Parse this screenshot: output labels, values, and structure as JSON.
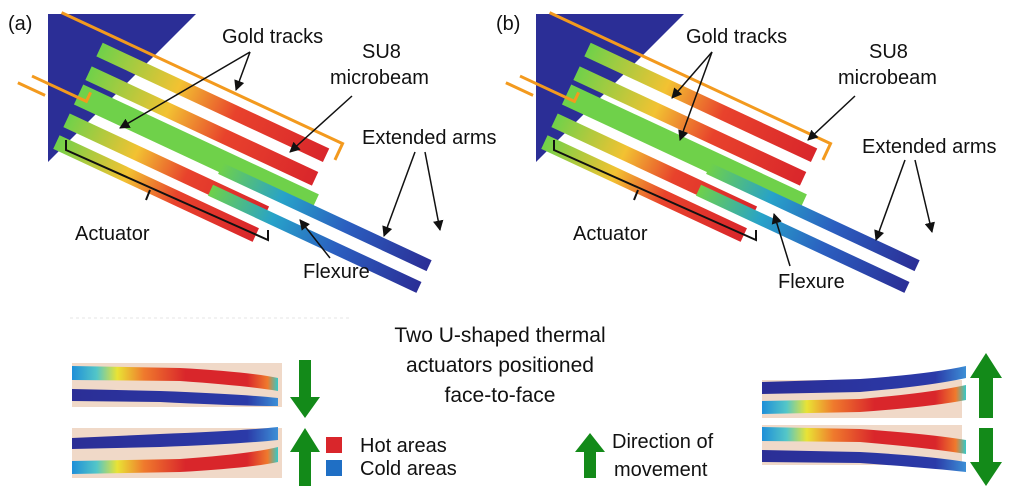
{
  "panel_a": {
    "letter": "(a)",
    "gold_tracks": "Gold tracks",
    "su8_line1": "SU8",
    "su8_line2": "microbeam",
    "extended_arms": "Extended arms",
    "actuator": "Actuator",
    "flexure": "Flexure"
  },
  "panel_b": {
    "letter": "(b)",
    "gold_tracks": "Gold tracks",
    "su8_line1": "SU8",
    "su8_line2": "microbeam",
    "extended_arms": "Extended arms",
    "actuator": "Actuator",
    "flexure": "Flexure"
  },
  "center_text": {
    "line1": "Two U-shaped thermal",
    "line2": "actuators positioned",
    "line3": "face-to-face"
  },
  "legend": {
    "hot": "Hot areas",
    "cold": "Cold areas",
    "direction_line1": "Direction of",
    "direction_line2": "movement"
  },
  "colors": {
    "hot": "#d9262b",
    "cold": "#1f6fc5",
    "anchor": "#2b2e96",
    "arrow": "#138a19",
    "gold": "#f39a1e",
    "su8": "#6fd14a",
    "substrate": "#f0d9c8"
  }
}
